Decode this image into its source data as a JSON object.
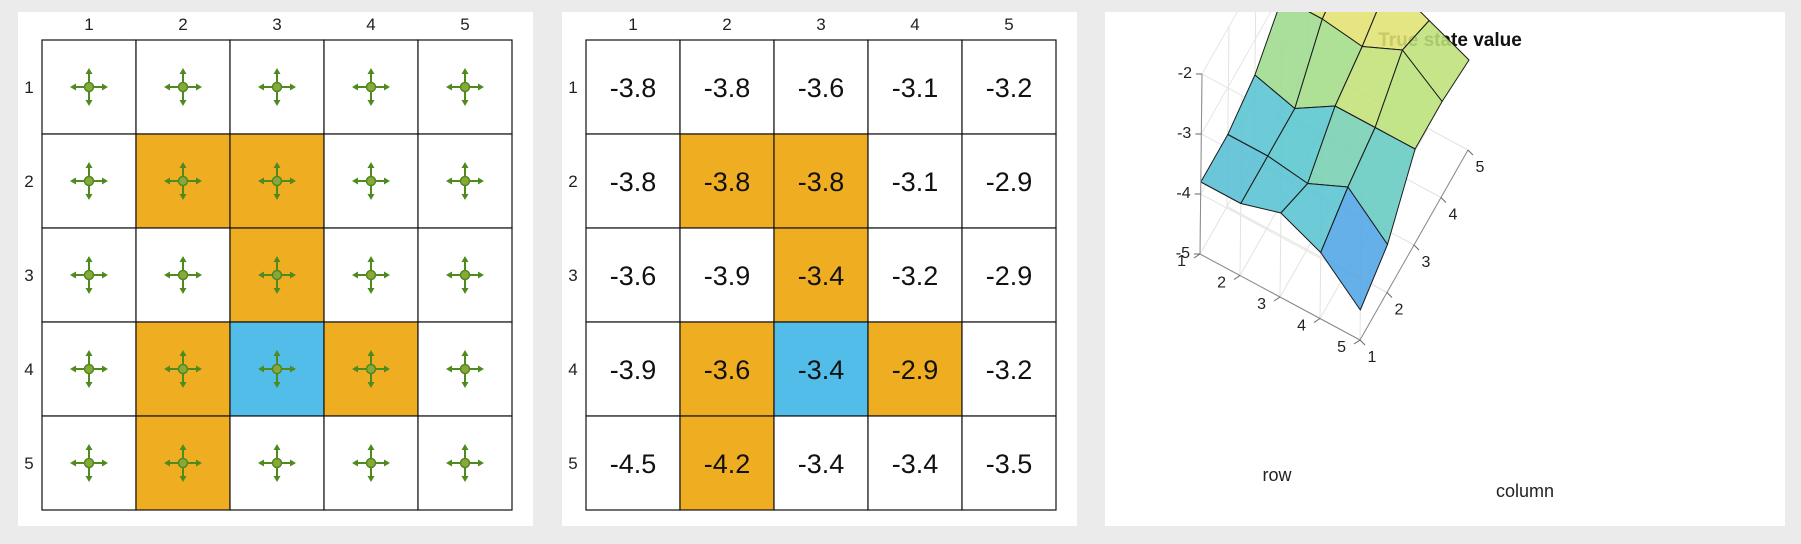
{
  "grid": {
    "rows": 5,
    "cols": 5,
    "column_labels": [
      "1",
      "2",
      "3",
      "4",
      "5"
    ],
    "row_labels": [
      "1",
      "2",
      "3",
      "4",
      "5"
    ],
    "cell_types": [
      [
        "white",
        "white",
        "white",
        "white",
        "white"
      ],
      [
        "white",
        "forbidden",
        "forbidden",
        "white",
        "white"
      ],
      [
        "white",
        "white",
        "forbidden",
        "white",
        "white"
      ],
      [
        "white",
        "forbidden",
        "target",
        "forbidden",
        "white"
      ],
      [
        "white",
        "forbidden",
        "white",
        "white",
        "white"
      ]
    ],
    "colors": {
      "white": "#ffffff",
      "forbidden": "#efae22",
      "target": "#52bde9",
      "arrow": "#4f8a1e",
      "arrow_center": "#8aa83a",
      "grid_line": "#111111"
    }
  },
  "policy": {
    "action_icon": "all-directions-arrows-icon"
  },
  "chart_data": {
    "type": "surface",
    "title": "True state value",
    "xlabel": "column",
    "ylabel": "row",
    "x": [
      1,
      2,
      3,
      4,
      5
    ],
    "y": [
      1,
      2,
      3,
      4,
      5
    ],
    "z_ticks": [
      "-2",
      "-3",
      "-4",
      "-5"
    ],
    "zlim": [
      -5,
      -2
    ],
    "z": [
      [
        -3.8,
        -3.8,
        -3.6,
        -3.1,
        -3.2
      ],
      [
        -3.8,
        -3.8,
        -3.8,
        -3.1,
        -2.9
      ],
      [
        -3.6,
        -3.9,
        -3.4,
        -3.2,
        -2.9
      ],
      [
        -3.9,
        -3.6,
        -3.4,
        -2.9,
        -3.2
      ],
      [
        -4.5,
        -4.2,
        -3.4,
        -3.4,
        -3.5
      ]
    ],
    "value_labels": [
      [
        "-3.8",
        "-3.8",
        "-3.6",
        "-3.1",
        "-3.2"
      ],
      [
        "-3.8",
        "-3.8",
        "-3.8",
        "-3.1",
        "-2.9"
      ],
      [
        "-3.6",
        "-3.9",
        "-3.4",
        "-3.2",
        "-2.9"
      ],
      [
        "-3.9",
        "-3.6",
        "-3.4",
        "-2.9",
        "-3.2"
      ],
      [
        "-4.5",
        "-4.2",
        "-3.4",
        "-3.4",
        "-3.5"
      ]
    ],
    "grid": true,
    "colormap": "parula"
  }
}
